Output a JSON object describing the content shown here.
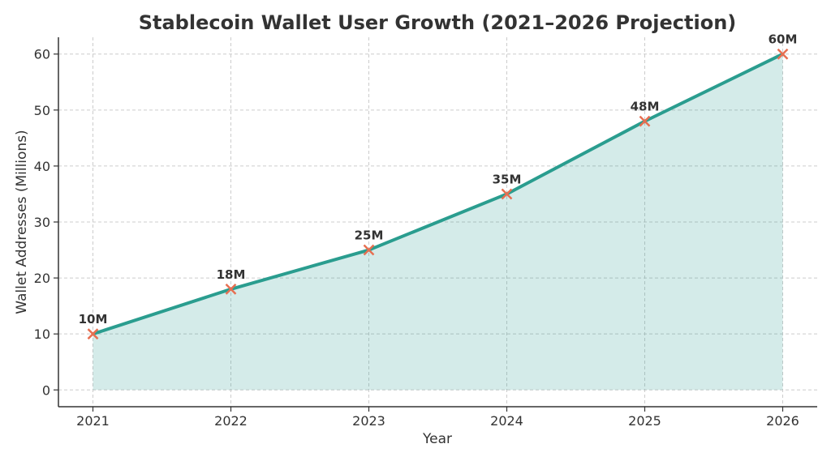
{
  "chart_data": {
    "type": "area",
    "title": "Stablecoin Wallet User Growth (2021–2026 Projection)",
    "xlabel": "Year",
    "ylabel": "Wallet Addresses (Millions)",
    "x": [
      "2021",
      "2022",
      "2023",
      "2024",
      "2025",
      "2026"
    ],
    "series": [
      {
        "values": [
          10,
          18,
          25,
          35,
          48,
          60
        ],
        "data_labels": [
          "10M",
          "18M",
          "25M",
          "35M",
          "48M",
          "60M"
        ]
      }
    ],
    "ylim": [
      -3,
      63
    ],
    "yticks": [
      0,
      10,
      20,
      30,
      40,
      50,
      60
    ],
    "grid": true,
    "colors": {
      "line": "#2a9d8f",
      "fill": "#2a9d8f",
      "marker": "#e76f51",
      "grid": "#cccccc",
      "text": "#333333"
    }
  }
}
